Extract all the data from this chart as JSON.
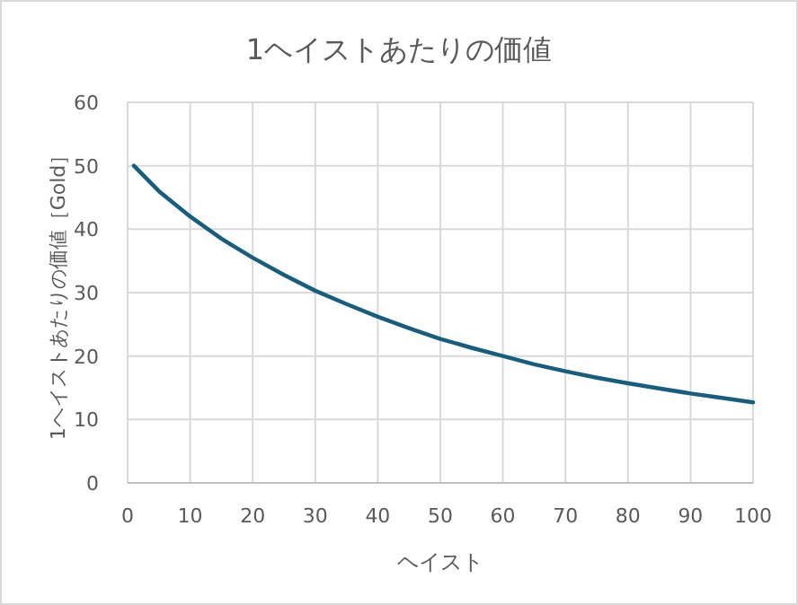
{
  "chart_data": {
    "type": "line",
    "title": "1ヘイストあたりの価値",
    "xlabel": "ヘイスト",
    "ylabel": "1ヘイストあたりの価値［Gold］",
    "x": [
      1,
      5,
      10,
      15,
      20,
      25,
      30,
      35,
      40,
      45,
      50,
      55,
      60,
      65,
      70,
      75,
      80,
      85,
      90,
      95,
      100
    ],
    "series": [
      {
        "color": "#165e7e",
        "values": [
          50,
          46,
          42,
          38.5,
          35.5,
          32.8,
          30.3,
          28.2,
          26.2,
          24.4,
          22.7,
          21.3,
          20,
          18.7,
          17.6,
          16.6,
          15.7,
          14.9,
          14.1,
          13.4,
          12.7
        ]
      }
    ],
    "xlim": [
      0,
      100
    ],
    "xticks": [
      0,
      10,
      20,
      30,
      40,
      50,
      60,
      70,
      80,
      90,
      100
    ],
    "ylim": [
      0,
      60
    ],
    "yticks": [
      0,
      10,
      20,
      30,
      40,
      50,
      60
    ],
    "grid": true,
    "marker": "none",
    "line_style": "solid"
  }
}
